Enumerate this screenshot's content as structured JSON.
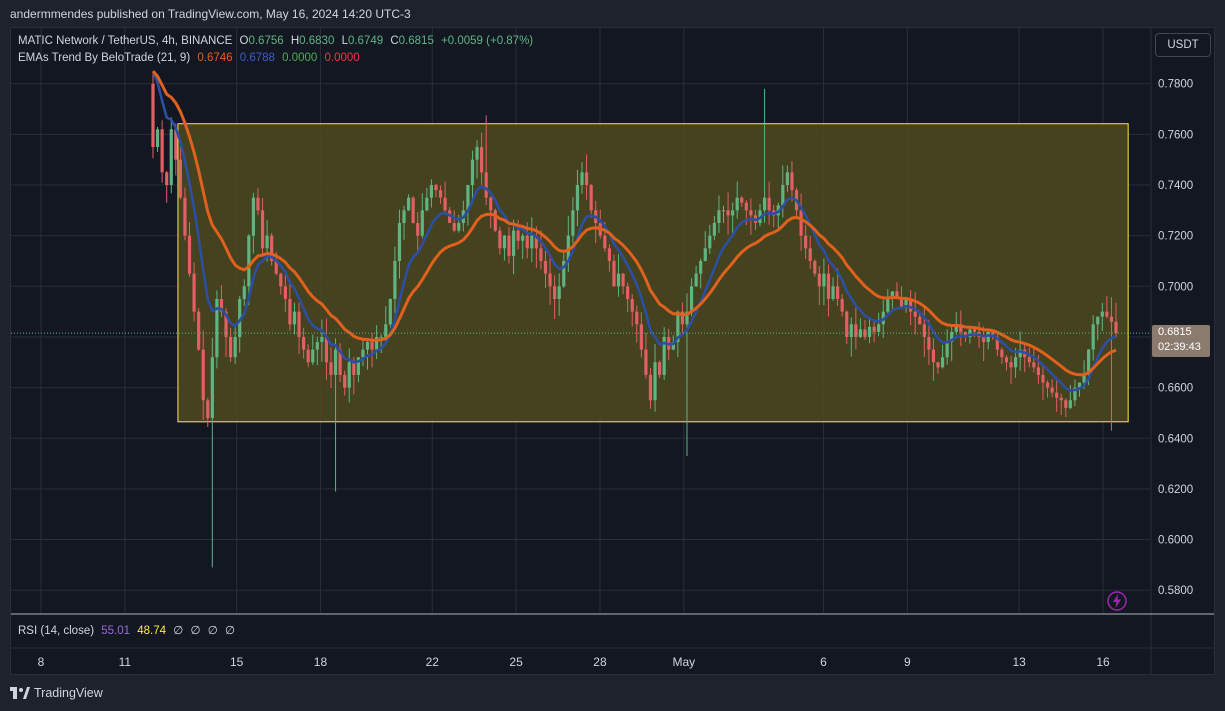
{
  "header": {
    "publish_text": "andermmendes published on TradingView.com, May 16, 2024 14:20 UTC-3"
  },
  "legend": {
    "symbol": "MATIC Network / TetherUS, 4h, BINANCE",
    "open_label": "O",
    "open": "0.6756",
    "high_label": "H",
    "high": "0.6830",
    "low_label": "L",
    "low": "0.6749",
    "close_label": "C",
    "close": "0.6815",
    "change": "+0.0059 (+0.87%)",
    "indicator_name": "EMAs Trend By BeloTrade (21, 9)",
    "ema21_value": "0.6746",
    "ema9_value": "0.6788",
    "val3": "0.0000",
    "val4": "0.0000"
  },
  "rsi": {
    "label": "RSI (14, close)",
    "value1": "55.01",
    "value2": "48.74",
    "empties": [
      "∅",
      "∅",
      "∅",
      "∅"
    ]
  },
  "currency_button": "USDT",
  "price_tag": {
    "price": "0.6815",
    "countdown": "02:39:43"
  },
  "footer": {
    "brand": "TradingView"
  },
  "colors": {
    "background": "#131722",
    "up": "#5fb482",
    "down": "#e25f63",
    "ema21": "#e0611d",
    "ema9": "#2c4fa3",
    "box_fill": "#4e4a1e",
    "box_border": "#ffeb3b",
    "rsi_primary": "#9c6ade",
    "rsi_secondary": "#ffeb3b"
  },
  "chart_data": {
    "type": "candlestick",
    "symbol": "MATIC Network / TetherUS",
    "timeframe": "4h",
    "y_ticks": [
      "0.7800",
      "0.7600",
      "0.7400",
      "0.7200",
      "0.7000",
      "0.6800",
      "0.6600",
      "0.6400",
      "0.6200",
      "0.6000",
      "0.5800"
    ],
    "ylim": [
      0.571,
      0.802
    ],
    "x_ticks": [
      {
        "label": "8",
        "day": 8
      },
      {
        "label": "11",
        "day": 11
      },
      {
        "label": "15",
        "day": 15
      },
      {
        "label": "18",
        "day": 18
      },
      {
        "label": "22",
        "day": 22
      },
      {
        "label": "25",
        "day": 25
      },
      {
        "label": "28",
        "day": 28
      },
      {
        "label": "May",
        "day": 31
      },
      {
        "label": "6",
        "day": 36
      },
      {
        "label": "9",
        "day": 39
      },
      {
        "label": "13",
        "day": 43
      },
      {
        "label": "16",
        "day": 46
      }
    ],
    "range_box": {
      "from_day": 12.9,
      "to_day": 46.9,
      "low": 0.6465,
      "high": 0.7642
    },
    "last_price": 0.6815,
    "closes": [
      0.755,
      0.762,
      0.745,
      0.74,
      0.762,
      0.75,
      0.735,
      0.72,
      0.705,
      0.69,
      0.675,
      0.655,
      0.648,
      0.672,
      0.695,
      0.69,
      0.68,
      0.672,
      0.68,
      0.695,
      0.7,
      0.72,
      0.735,
      0.73,
      0.715,
      0.72,
      0.71,
      0.705,
      0.7,
      0.695,
      0.685,
      0.69,
      0.68,
      0.675,
      0.67,
      0.675,
      0.678,
      0.68,
      0.67,
      0.665,
      0.675,
      0.665,
      0.66,
      0.67,
      0.665,
      0.672,
      0.675,
      0.678,
      0.675,
      0.68,
      0.68,
      0.685,
      0.695,
      0.71,
      0.725,
      0.73,
      0.735,
      0.725,
      0.72,
      0.73,
      0.735,
      0.74,
      0.738,
      0.735,
      0.73,
      0.725,
      0.722,
      0.725,
      0.73,
      0.74,
      0.75,
      0.755,
      0.745,
      0.735,
      0.73,
      0.722,
      0.715,
      0.72,
      0.712,
      0.722,
      0.718,
      0.72,
      0.715,
      0.72,
      0.715,
      0.71,
      0.705,
      0.7,
      0.695,
      0.7,
      0.71,
      0.72,
      0.73,
      0.74,
      0.745,
      0.74,
      0.73,
      0.725,
      0.72,
      0.715,
      0.71,
      0.7,
      0.705,
      0.7,
      0.695,
      0.69,
      0.685,
      0.675,
      0.665,
      0.655,
      0.67,
      0.665,
      0.68,
      0.675,
      0.678,
      0.69,
      0.685,
      0.69,
      0.7,
      0.705,
      0.71,
      0.715,
      0.72,
      0.725,
      0.73,
      0.73,
      0.728,
      0.73,
      0.735,
      0.733,
      0.73,
      0.728,
      0.725,
      0.73,
      0.735,
      0.73,
      0.728,
      0.732,
      0.74,
      0.745,
      0.738,
      0.73,
      0.72,
      0.715,
      0.71,
      0.705,
      0.7,
      0.705,
      0.695,
      0.7,
      0.695,
      0.69,
      0.68,
      0.685,
      0.68,
      0.683,
      0.68,
      0.684,
      0.682,
      0.685,
      0.69,
      0.695,
      0.698,
      0.695,
      0.692,
      0.695,
      0.69,
      0.688,
      0.685,
      0.68,
      0.675,
      0.67,
      0.668,
      0.672,
      0.678,
      0.682,
      0.685,
      0.682,
      0.68,
      0.683,
      0.682,
      0.68,
      0.678,
      0.682,
      0.68,
      0.675,
      0.672,
      0.67,
      0.668,
      0.672,
      0.675,
      0.672,
      0.67,
      0.668,
      0.665,
      0.662,
      0.66,
      0.658,
      0.656,
      0.655,
      0.652,
      0.655,
      0.66,
      0.662,
      0.665,
      0.675,
      0.685,
      0.688,
      0.69,
      0.688,
      0.686,
      0.6815
    ],
    "ema21_line": "orange smoothed trend",
    "ema9_line": "blue smoothed trend"
  }
}
